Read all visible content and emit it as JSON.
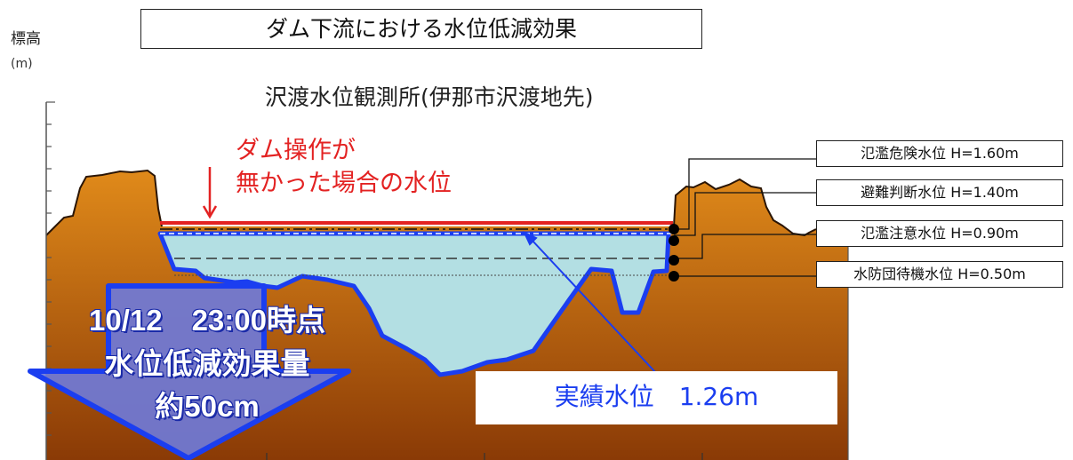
{
  "title": "ダム下流における水位低減効果",
  "axis": {
    "label": "標高",
    "unit": "(m)"
  },
  "station": "沢渡水位観測所(伊那市沢渡地先)",
  "no_dam_note": {
    "line1": "ダム操作が",
    "line2": "無かった場合の水位"
  },
  "levels": [
    {
      "label": "氾濫危険水位 H=1.60m",
      "value_m": 1.6
    },
    {
      "label": "避難判断水位 H=1.40m",
      "value_m": 1.4
    },
    {
      "label": "氾濫注意水位 H=0.90m",
      "value_m": 0.9
    },
    {
      "label": "水防団待機水位 H=0.50m",
      "value_m": 0.5
    }
  ],
  "actual_level": "実績水位　1.26m",
  "effect": {
    "line1": "10/12　23:00時点",
    "line2": "水位低減効果量",
    "line3": "約50cm"
  },
  "colors": {
    "terrain_top": "#e08a1a",
    "terrain_bottom": "#8a3a06",
    "water": "#b3dfe3",
    "actual_line": "#1b3ef0",
    "no_dam_line": "#e32222",
    "arrow_fill": "#6f79d8",
    "arrow_edge": "#1b3ef0"
  }
}
